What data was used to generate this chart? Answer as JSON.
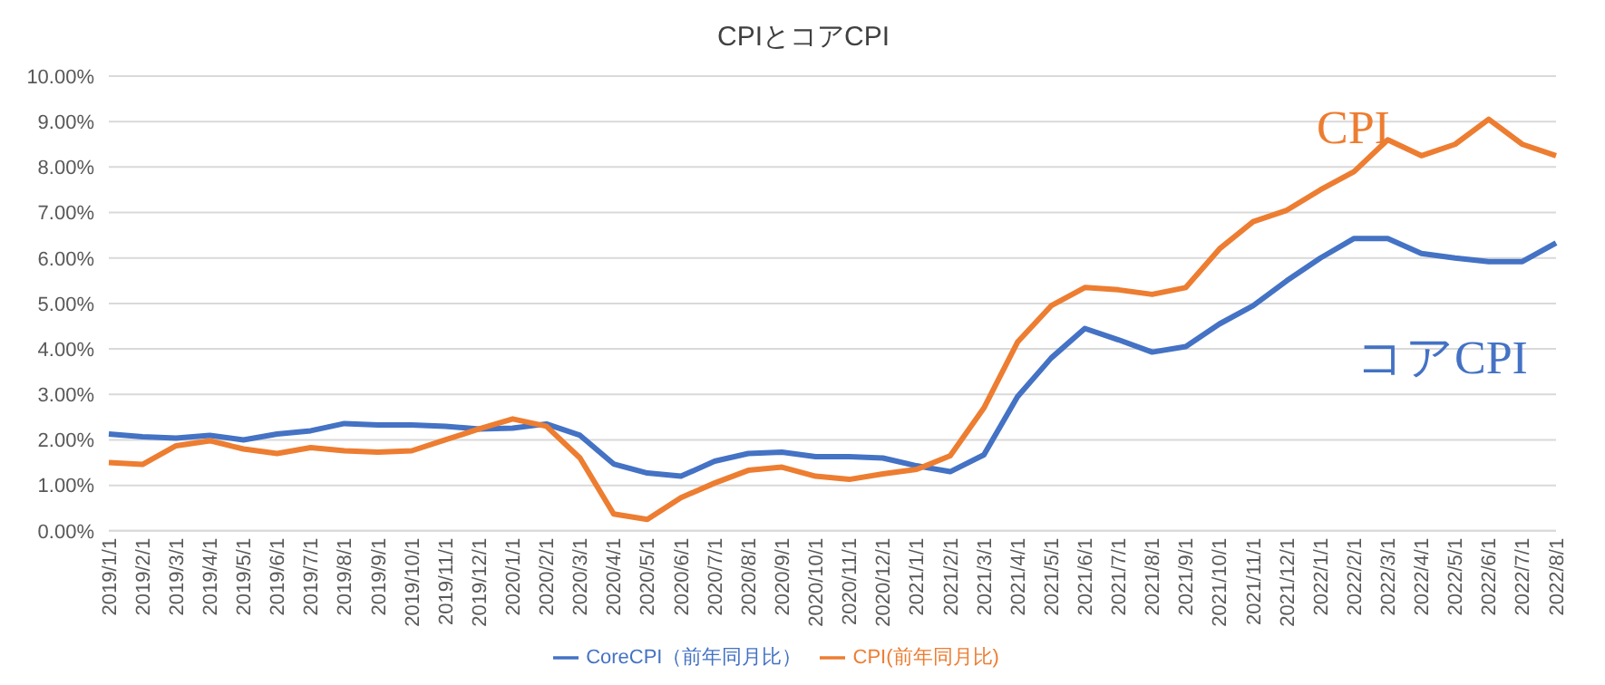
{
  "chart_data": {
    "type": "line",
    "title": "CPIとコアCPI",
    "categories": [
      "2019/1/1",
      "2019/2/1",
      "2019/3/1",
      "2019/4/1",
      "2019/5/1",
      "2019/6/1",
      "2019/7/1",
      "2019/8/1",
      "2019/9/1",
      "2019/10/1",
      "2019/11/1",
      "2019/12/1",
      "2020/1/1",
      "2020/2/1",
      "2020/3/1",
      "2020/4/1",
      "2020/5/1",
      "2020/6/1",
      "2020/7/1",
      "2020/8/1",
      "2020/9/1",
      "2020/10/1",
      "2020/11/1",
      "2020/12/1",
      "2021/1/1",
      "2021/2/1",
      "2021/3/1",
      "2021/4/1",
      "2021/5/1",
      "2021/6/1",
      "2021/7/1",
      "2021/8/1",
      "2021/9/1",
      "2021/10/1",
      "2021/11/1",
      "2021/12/1",
      "2022/1/1",
      "2022/2/1",
      "2022/3/1",
      "2022/4/1",
      "2022/5/1",
      "2022/6/1",
      "2022/7/1",
      "2022/8/1"
    ],
    "series": [
      {
        "name": "CoreCPI（前年同月比）",
        "color": "#4472c4",
        "values": [
          2.13,
          2.07,
          2.04,
          2.1,
          2.0,
          2.13,
          2.2,
          2.36,
          2.33,
          2.33,
          2.3,
          2.24,
          2.26,
          2.35,
          2.1,
          1.47,
          1.27,
          1.2,
          1.53,
          1.7,
          1.73,
          1.63,
          1.63,
          1.6,
          1.43,
          1.3,
          1.67,
          2.95,
          3.8,
          4.45,
          4.2,
          3.93,
          4.05,
          4.55,
          4.95,
          5.5,
          6.0,
          6.43,
          6.43,
          6.1,
          6.0,
          5.92,
          5.92,
          6.33
        ]
      },
      {
        "name": "CPI(前年同月比)",
        "color": "#ed7d31",
        "values": [
          1.5,
          1.46,
          1.87,
          1.98,
          1.8,
          1.7,
          1.83,
          1.76,
          1.73,
          1.76,
          2.0,
          2.24,
          2.46,
          2.3,
          1.6,
          0.37,
          0.25,
          0.73,
          1.05,
          1.33,
          1.4,
          1.2,
          1.13,
          1.25,
          1.35,
          1.65,
          2.7,
          4.15,
          4.95,
          5.35,
          5.3,
          5.2,
          5.35,
          6.2,
          6.8,
          7.05,
          7.5,
          7.9,
          8.6,
          8.25,
          8.5,
          9.05,
          8.5,
          8.25
        ]
      }
    ],
    "ylim": [
      0,
      10
    ],
    "yticks": [
      {
        "value": 0,
        "label": "0.00%"
      },
      {
        "value": 1,
        "label": "1.00%"
      },
      {
        "value": 2,
        "label": "2.00%"
      },
      {
        "value": 3,
        "label": "3.00%"
      },
      {
        "value": 4,
        "label": "4.00%"
      },
      {
        "value": 5,
        "label": "5.00%"
      },
      {
        "value": 6,
        "label": "6.00%"
      },
      {
        "value": 7,
        "label": "7.00%"
      },
      {
        "value": 8,
        "label": "8.00%"
      },
      {
        "value": 9,
        "label": "9.00%"
      },
      {
        "value": 10,
        "label": "10.00%"
      }
    ],
    "grid": "y",
    "legend": "bottom",
    "marker": "none",
    "line_style": "solid",
    "annotations": [
      "CPI",
      "コアCPI"
    ]
  }
}
